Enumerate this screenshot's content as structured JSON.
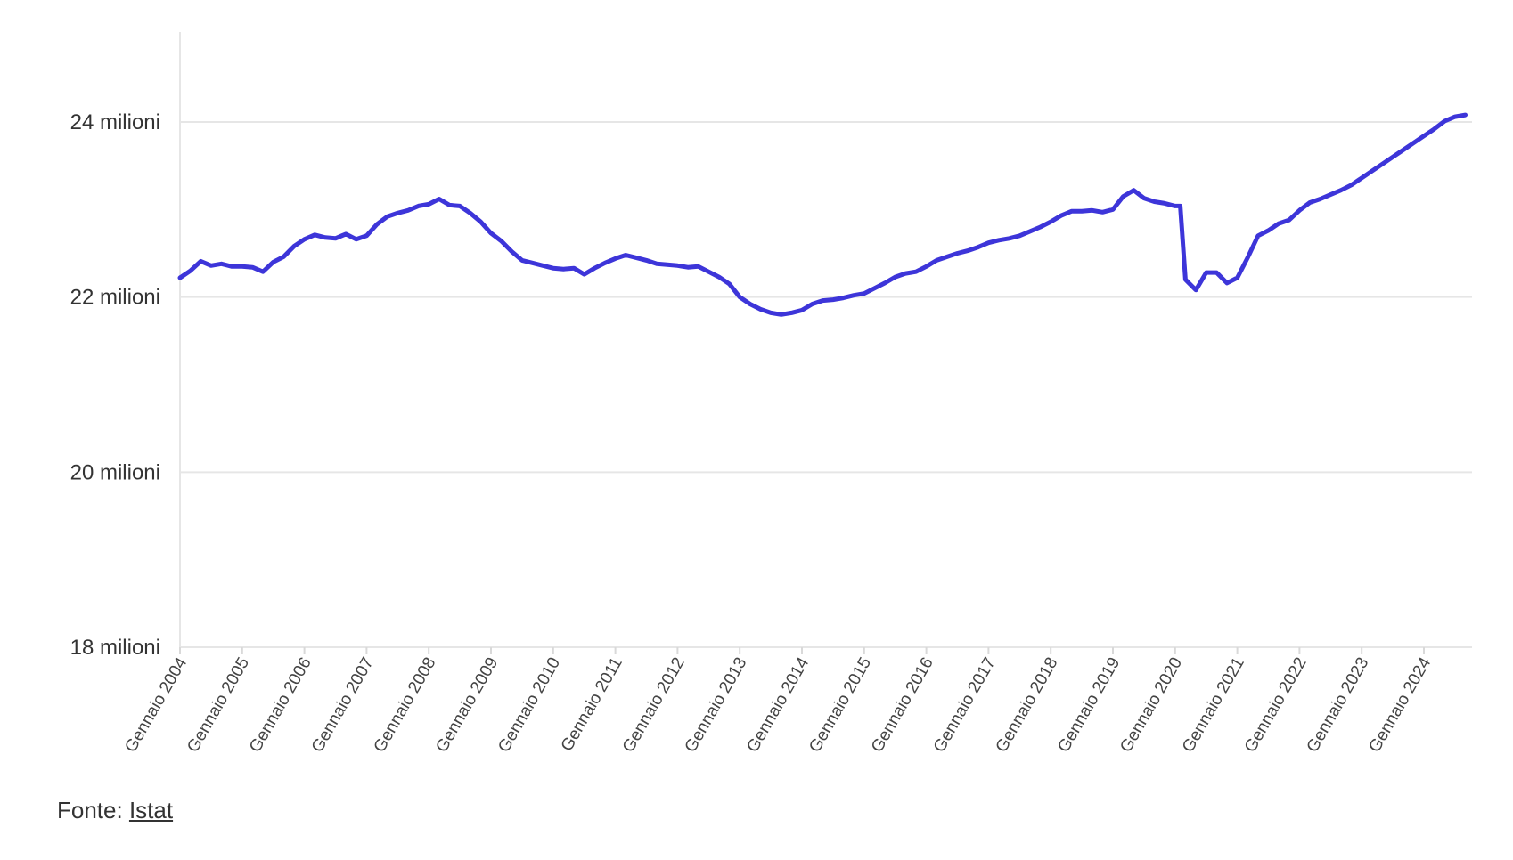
{
  "chart_data": {
    "type": "line",
    "ylim": [
      18000000,
      25000000
    ],
    "grid": true,
    "line_color": "#3d35d9",
    "y_ticks": [
      {
        "value": 18000000,
        "label": "18 milioni"
      },
      {
        "value": 20000000,
        "label": "20 milioni"
      },
      {
        "value": 22000000,
        "label": "22 milioni"
      },
      {
        "value": 24000000,
        "label": "24 milioni"
      }
    ],
    "x_ticks": [
      {
        "value": "2004-01",
        "label": "Gennaio 2004"
      },
      {
        "value": "2005-01",
        "label": "Gennaio 2005"
      },
      {
        "value": "2006-01",
        "label": "Gennaio 2006"
      },
      {
        "value": "2007-01",
        "label": "Gennaio 2007"
      },
      {
        "value": "2008-01",
        "label": "Gennaio 2008"
      },
      {
        "value": "2009-01",
        "label": "Gennaio 2009"
      },
      {
        "value": "2010-01",
        "label": "Gennaio 2010"
      },
      {
        "value": "2011-01",
        "label": "Gennaio 2011"
      },
      {
        "value": "2012-01",
        "label": "Gennaio 2012"
      },
      {
        "value": "2013-01",
        "label": "Gennaio 2013"
      },
      {
        "value": "2014-01",
        "label": "Gennaio 2014"
      },
      {
        "value": "2015-01",
        "label": "Gennaio 2015"
      },
      {
        "value": "2016-01",
        "label": "Gennaio 2016"
      },
      {
        "value": "2017-01",
        "label": "Gennaio 2017"
      },
      {
        "value": "2018-01",
        "label": "Gennaio 2018"
      },
      {
        "value": "2019-01",
        "label": "Gennaio 2019"
      },
      {
        "value": "2020-01",
        "label": "Gennaio 2020"
      },
      {
        "value": "2021-01",
        "label": "Gennaio 2021"
      },
      {
        "value": "2022-01",
        "label": "Gennaio 2022"
      },
      {
        "value": "2023-01",
        "label": "Gennaio 2023"
      },
      {
        "value": "2024-01",
        "label": "Gennaio 2024"
      }
    ],
    "series": [
      {
        "x": [
          "2004-01",
          "2004-03",
          "2004-05",
          "2004-07",
          "2004-09",
          "2004-11",
          "2005-01",
          "2005-03",
          "2005-05",
          "2005-07",
          "2005-09",
          "2005-11",
          "2006-01",
          "2006-03",
          "2006-05",
          "2006-07",
          "2006-09",
          "2006-11",
          "2007-01",
          "2007-03",
          "2007-05",
          "2007-07",
          "2007-09",
          "2007-11",
          "2008-01",
          "2008-03",
          "2008-05",
          "2008-07",
          "2008-09",
          "2008-11",
          "2009-01",
          "2009-03",
          "2009-05",
          "2009-07",
          "2009-09",
          "2009-11",
          "2010-01",
          "2010-03",
          "2010-05",
          "2010-07",
          "2010-09",
          "2010-11",
          "2011-01",
          "2011-03",
          "2011-05",
          "2011-07",
          "2011-09",
          "2011-11",
          "2012-01",
          "2012-03",
          "2012-05",
          "2012-07",
          "2012-09",
          "2012-11",
          "2013-01",
          "2013-03",
          "2013-05",
          "2013-07",
          "2013-09",
          "2013-11",
          "2014-01",
          "2014-03",
          "2014-05",
          "2014-07",
          "2014-09",
          "2014-11",
          "2015-01",
          "2015-03",
          "2015-05",
          "2015-07",
          "2015-09",
          "2015-11",
          "2016-01",
          "2016-03",
          "2016-05",
          "2016-07",
          "2016-09",
          "2016-11",
          "2017-01",
          "2017-03",
          "2017-05",
          "2017-07",
          "2017-09",
          "2017-11",
          "2018-01",
          "2018-03",
          "2018-05",
          "2018-07",
          "2018-09",
          "2018-11",
          "2019-01",
          "2019-03",
          "2019-05",
          "2019-07",
          "2019-09",
          "2019-11",
          "2020-01",
          "2020-02",
          "2020-03",
          "2020-05",
          "2020-07",
          "2020-09",
          "2020-11",
          "2021-01",
          "2021-03",
          "2021-05",
          "2021-07",
          "2021-09",
          "2021-11",
          "2022-01",
          "2022-03",
          "2022-05",
          "2022-07",
          "2022-09",
          "2022-11",
          "2023-01",
          "2023-03",
          "2023-05",
          "2023-07",
          "2023-09",
          "2023-11",
          "2024-01",
          "2024-03",
          "2024-05",
          "2024-07",
          "2024-09"
        ],
        "values": [
          22220000,
          22300000,
          22410000,
          22360000,
          22380000,
          22350000,
          22350000,
          22340000,
          22290000,
          22400000,
          22460000,
          22580000,
          22660000,
          22710000,
          22680000,
          22670000,
          22720000,
          22660000,
          22700000,
          22830000,
          22920000,
          22960000,
          22990000,
          23040000,
          23060000,
          23120000,
          23050000,
          23040000,
          22960000,
          22860000,
          22730000,
          22640000,
          22520000,
          22420000,
          22390000,
          22360000,
          22330000,
          22320000,
          22330000,
          22260000,
          22330000,
          22390000,
          22440000,
          22480000,
          22450000,
          22420000,
          22380000,
          22370000,
          22360000,
          22340000,
          22350000,
          22290000,
          22230000,
          22150000,
          22000000,
          21920000,
          21860000,
          21820000,
          21800000,
          21820000,
          21850000,
          21920000,
          21960000,
          21970000,
          21990000,
          22020000,
          22040000,
          22100000,
          22160000,
          22230000,
          22270000,
          22290000,
          22350000,
          22420000,
          22460000,
          22500000,
          22530000,
          22570000,
          22620000,
          22650000,
          22670000,
          22700000,
          22750000,
          22800000,
          22860000,
          22930000,
          22980000,
          22980000,
          22990000,
          22970000,
          23000000,
          23150000,
          23220000,
          23130000,
          23090000,
          23070000,
          23040000,
          23040000,
          22200000,
          22080000,
          22280000,
          22280000,
          22160000,
          22220000,
          22450000,
          22700000,
          22760000,
          22840000,
          22880000,
          22990000,
          23080000,
          23120000,
          23170000,
          23220000,
          23280000,
          23360000,
          23440000,
          23520000,
          23600000,
          23680000,
          23760000,
          23840000,
          23920000,
          24010000,
          24060000,
          24080000
        ]
      }
    ]
  },
  "source": {
    "prefix": "Fonte: ",
    "link_text": "Istat"
  }
}
